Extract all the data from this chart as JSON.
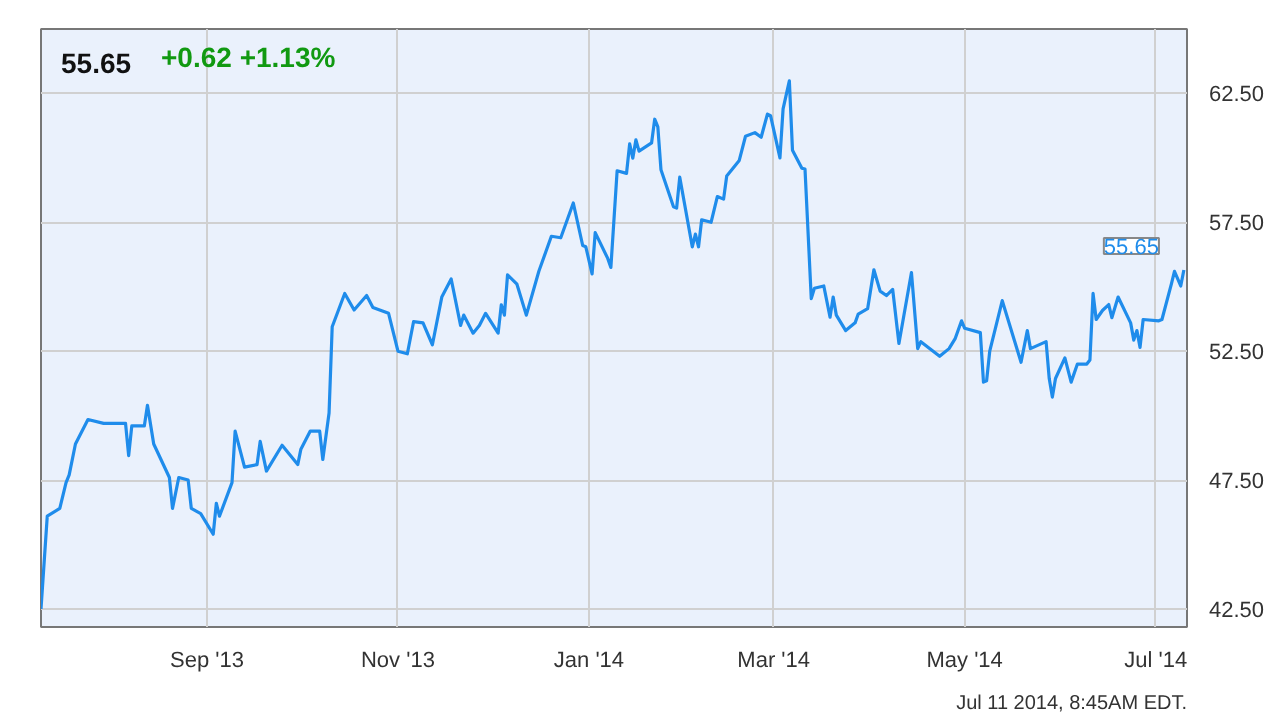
{
  "chart_data": {
    "type": "line",
    "title": "55.65",
    "subtitle": "+0.62  +1.13%",
    "annotations": [
      {
        "text": "55.65",
        "x": "2014-07-10",
        "y": 55.65
      },
      "Jul 11 2014, 8:45AM EDT."
    ],
    "x": [
      "2013-07-10",
      "2013-07-12",
      "2013-07-16",
      "2013-07-18",
      "2013-07-19",
      "2013-07-21",
      "2013-07-25",
      "2013-07-30",
      "2013-08-06",
      "2013-08-07",
      "2013-08-08",
      "2013-08-12",
      "2013-08-13",
      "2013-08-15",
      "2013-08-20",
      "2013-08-21",
      "2013-08-23",
      "2013-08-26",
      "2013-08-27",
      "2013-08-30",
      "2013-09-03",
      "2013-09-04",
      "2013-09-05",
      "2013-09-09",
      "2013-09-10",
      "2013-09-13",
      "2013-09-17",
      "2013-09-18",
      "2013-09-20",
      "2013-09-25",
      "2013-09-30",
      "2013-10-01",
      "2013-10-04",
      "2013-10-07",
      "2013-10-08",
      "2013-10-10",
      "2013-10-11",
      "2013-10-15",
      "2013-10-18",
      "2013-10-22",
      "2013-10-24",
      "2013-10-29",
      "2013-11-01",
      "2013-11-04",
      "2013-11-06",
      "2013-11-09",
      "2013-11-12",
      "2013-11-15",
      "2013-11-18",
      "2013-11-21",
      "2013-11-22",
      "2013-11-25",
      "2013-11-27",
      "2013-11-29",
      "2013-12-03",
      "2013-12-04",
      "2013-12-05",
      "2013-12-06",
      "2013-12-09",
      "2013-12-12",
      "2013-12-16",
      "2013-12-20",
      "2013-12-23",
      "2013-12-27",
      "2013-12-30",
      "2013-12-31",
      "2014-01-02",
      "2014-01-03",
      "2014-01-07",
      "2014-01-08",
      "2014-01-10",
      "2014-01-13",
      "2014-01-14",
      "2014-01-15",
      "2014-01-16",
      "2014-01-17",
      "2014-01-21",
      "2014-01-22",
      "2014-01-23",
      "2014-01-24",
      "2014-01-28",
      "2014-01-29",
      "2014-01-30",
      "2014-02-03",
      "2014-02-04",
      "2014-02-05",
      "2014-02-06",
      "2014-02-09",
      "2014-02-11",
      "2014-02-13",
      "2014-02-14",
      "2014-02-18",
      "2014-02-20",
      "2014-02-23",
      "2014-02-25",
      "2014-02-27",
      "2014-02-28",
      "2014-03-03",
      "2014-03-04",
      "2014-03-06",
      "2014-03-07",
      "2014-03-10",
      "2014-03-11",
      "2014-03-13",
      "2014-03-14",
      "2014-03-17",
      "2014-03-19",
      "2014-03-20",
      "2014-03-21",
      "2014-03-24",
      "2014-03-27",
      "2014-03-28",
      "2014-03-31",
      "2014-04-02",
      "2014-04-04",
      "2014-04-06",
      "2014-04-08",
      "2014-04-10",
      "2014-04-14",
      "2014-04-16",
      "2014-04-17",
      "2014-04-23",
      "2014-04-26",
      "2014-04-28",
      "2014-04-30",
      "2014-05-01",
      "2014-05-06",
      "2014-05-07",
      "2014-05-08",
      "2014-05-09",
      "2014-05-13",
      "2014-05-17",
      "2014-05-19",
      "2014-05-21",
      "2014-05-22",
      "2014-05-27",
      "2014-05-28",
      "2014-05-29",
      "2014-05-30",
      "2014-06-02",
      "2014-06-04",
      "2014-06-06",
      "2014-06-09",
      "2014-06-10",
      "2014-06-11",
      "2014-06-12",
      "2014-06-14",
      "2014-06-16",
      "2014-06-17",
      "2014-06-19",
      "2014-06-23",
      "2014-06-24",
      "2014-06-25",
      "2014-06-26",
      "2014-06-27",
      "2014-07-02",
      "2014-07-03",
      "2014-07-06",
      "2014-07-07",
      "2014-07-09",
      "2014-07-10"
    ],
    "series": [
      {
        "color": "#1f8ceb",
        "values": [
          42.5,
          46.1,
          46.4,
          47.4,
          47.7,
          48.9,
          49.85,
          49.7,
          49.7,
          48.45,
          49.6,
          49.6,
          50.4,
          48.9,
          47.6,
          46.4,
          47.6,
          47.5,
          46.4,
          46.2,
          45.4,
          46.6,
          46.1,
          47.4,
          49.4,
          48.0,
          48.1,
          49.0,
          47.85,
          48.85,
          48.1,
          48.7,
          49.4,
          49.4,
          48.3,
          50.1,
          53.45,
          54.74,
          54.1,
          54.66,
          54.2,
          53.97,
          52.5,
          52.4,
          53.65,
          53.6,
          52.75,
          54.6,
          55.3,
          53.5,
          53.9,
          53.2,
          53.5,
          53.97,
          53.2,
          54.3,
          53.9,
          55.46,
          55.1,
          53.9,
          55.6,
          56.96,
          56.9,
          58.25,
          56.6,
          56.55,
          55.5,
          57.1,
          56.1,
          55.75,
          59.5,
          59.4,
          60.54,
          59.99,
          60.7,
          60.26,
          60.58,
          61.5,
          61.2,
          59.54,
          58.1,
          58.05,
          59.25,
          56.55,
          57.04,
          56.55,
          57.6,
          57.5,
          58.5,
          58.4,
          59.3,
          59.9,
          60.84,
          60.98,
          60.8,
          61.7,
          61.64,
          60.0,
          61.9,
          62.99,
          60.3,
          59.6,
          59.57,
          54.54,
          54.94,
          55.03,
          53.82,
          54.6,
          53.9,
          53.3,
          53.6,
          53.94,
          54.15,
          55.66,
          54.83,
          54.66,
          54.9,
          52.8,
          55.55,
          52.6,
          52.87,
          52.3,
          52.6,
          53.0,
          53.68,
          53.39,
          53.22,
          51.3,
          51.35,
          52.5,
          54.46,
          52.87,
          52.07,
          53.3,
          52.6,
          52.87,
          51.44,
          50.72,
          51.44,
          52.24,
          51.3,
          52.0,
          52.0,
          52.16,
          54.74,
          53.73,
          54.08,
          54.31,
          53.8,
          54.6,
          53.6,
          52.93,
          53.3,
          52.65,
          53.73,
          53.68,
          53.73,
          55.1,
          55.6,
          55.03,
          55.65
        ]
      }
    ],
    "xlim": [
      "2013-07-10",
      "2014-07-11"
    ],
    "xticks": [
      {
        "value": "2013-09-01",
        "label": "Sep '13"
      },
      {
        "value": "2013-11-01",
        "label": "Nov '13"
      },
      {
        "value": "2014-01-01",
        "label": "Jan '14"
      },
      {
        "value": "2014-03-01",
        "label": "Mar '14"
      },
      {
        "value": "2014-05-01",
        "label": "May '14"
      },
      {
        "value": "2014-07-01",
        "label": "Jul '14"
      }
    ],
    "ylim": [
      41.8,
      65
    ],
    "yticks": [
      {
        "value": 42.5,
        "label": "42.50"
      },
      {
        "value": 47.5,
        "label": "47.50"
      },
      {
        "value": 52.5,
        "label": "52.50"
      },
      {
        "value": 57.5,
        "label": "57.50"
      },
      {
        "value": 62.5,
        "label": "62.50"
      }
    ],
    "grid": true,
    "marker": "none",
    "line_style": "solid"
  }
}
